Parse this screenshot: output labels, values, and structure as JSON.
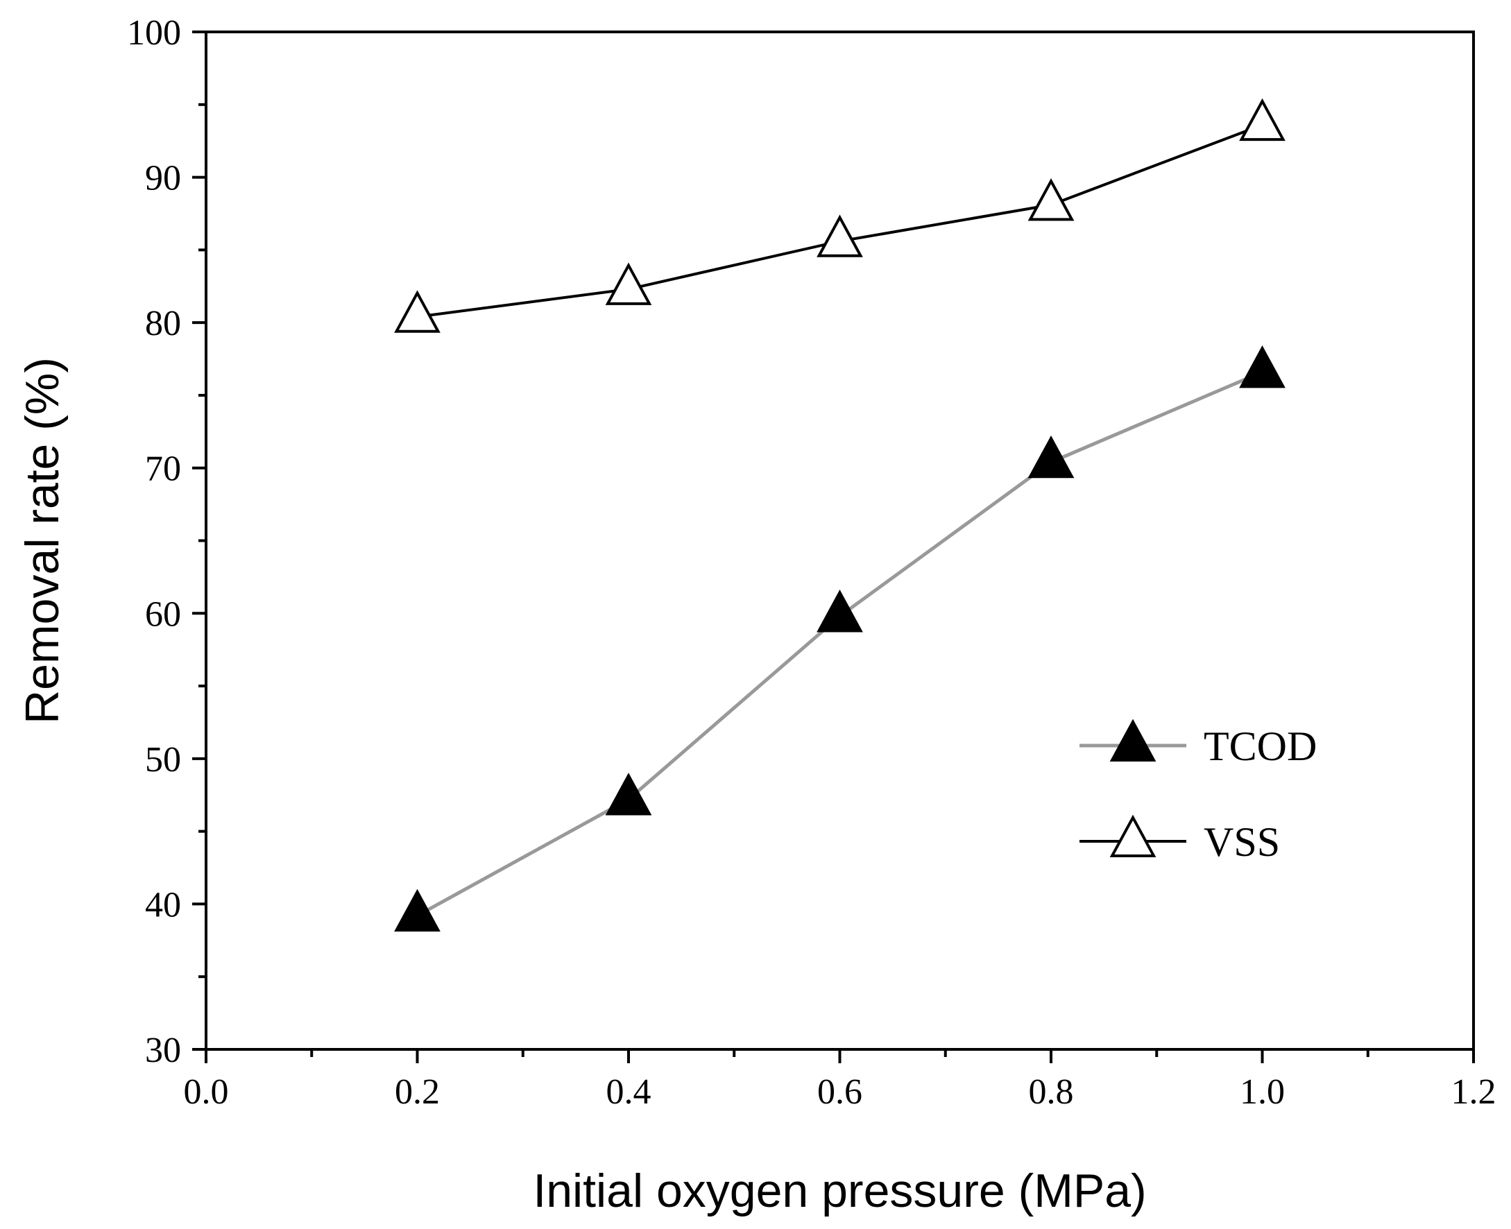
{
  "chart_data": {
    "type": "line",
    "title": "",
    "xlabel": "Initial oxygen pressure (MPa)",
    "ylabel": "Removal rate (%)",
    "xlim": [
      0.0,
      1.2
    ],
    "ylim": [
      30,
      100
    ],
    "x_ticks": [
      0.0,
      0.2,
      0.4,
      0.6,
      0.8,
      1.0,
      1.2
    ],
    "x_tick_labels": [
      "0.0",
      "0.2",
      "0.4",
      "0.6",
      "0.8",
      "1.0",
      "1.2"
    ],
    "y_ticks": [
      30,
      40,
      50,
      60,
      70,
      80,
      90,
      100
    ],
    "y_tick_labels": [
      "30",
      "40",
      "50",
      "60",
      "70",
      "80",
      "90",
      "100"
    ],
    "grid": false,
    "legend_position": "right-middle",
    "series": [
      {
        "name": "TCOD",
        "x": [
          0.2,
          0.4,
          0.6,
          0.8,
          1.0
        ],
        "values": [
          39.2,
          47.2,
          59.8,
          70.4,
          76.6
        ],
        "line_color": "#999999",
        "marker": "filled-triangle",
        "marker_color": "#000000"
      },
      {
        "name": "VSS",
        "x": [
          0.2,
          0.4,
          0.6,
          0.8,
          1.0
        ],
        "values": [
          80.4,
          82.3,
          85.6,
          88.1,
          93.6
        ],
        "line_color": "#000000",
        "marker": "open-triangle",
        "marker_color": "#000000"
      }
    ]
  }
}
